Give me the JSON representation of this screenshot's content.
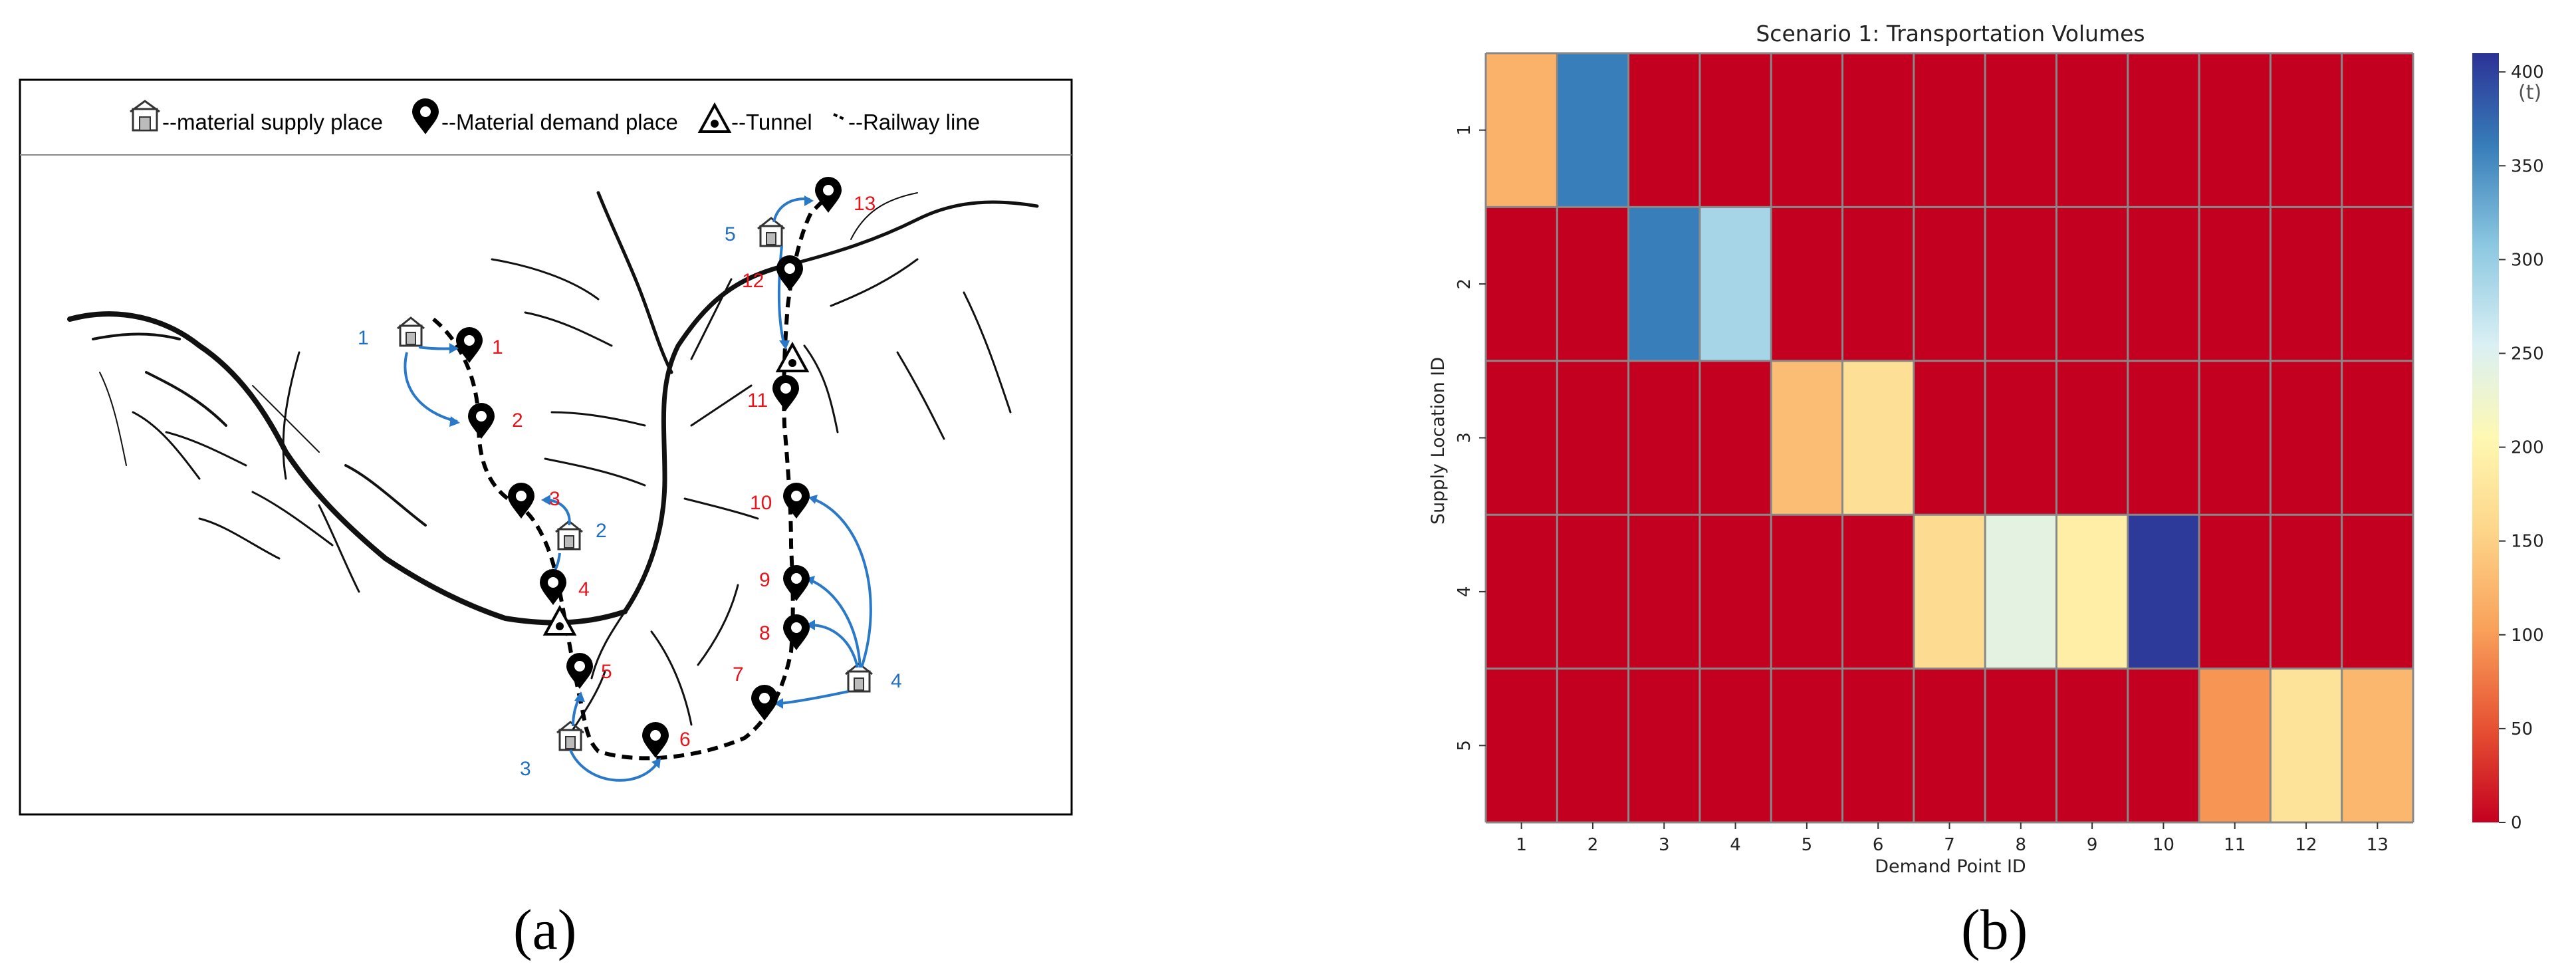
{
  "panel_a": {
    "label": "(a)",
    "legend": {
      "supply": "--material supply place",
      "demand": "--Material demand place",
      "tunnel": "--Tunnel",
      "railway": "--Railway line"
    },
    "demand_points": [
      {
        "id": "1"
      },
      {
        "id": "2"
      },
      {
        "id": "3"
      },
      {
        "id": "4"
      },
      {
        "id": "5"
      },
      {
        "id": "6"
      },
      {
        "id": "7"
      },
      {
        "id": "8"
      },
      {
        "id": "9"
      },
      {
        "id": "10"
      },
      {
        "id": "11"
      },
      {
        "id": "12"
      },
      {
        "id": "13"
      }
    ],
    "supply_points": [
      {
        "id": "1"
      },
      {
        "id": "2"
      },
      {
        "id": "3"
      },
      {
        "id": "4"
      },
      {
        "id": "5"
      }
    ],
    "colors": {
      "demand_label": "#e8141b",
      "supply_label": "#1f6fc0",
      "arrow": "#2a78c8"
    }
  },
  "panel_b": {
    "label": "(b)"
  },
  "chart_data": {
    "type": "heatmap",
    "title": "Scenario 1: Transportation Volumes",
    "xlabel": "Demand Point ID",
    "ylabel": "Supply Location ID",
    "x": [
      "1",
      "2",
      "3",
      "4",
      "5",
      "6",
      "7",
      "8",
      "9",
      "10",
      "11",
      "12",
      "13"
    ],
    "y": [
      "1",
      "2",
      "3",
      "4",
      "5"
    ],
    "values": [
      [
        120,
        360,
        0,
        0,
        0,
        0,
        0,
        0,
        0,
        0,
        0,
        0,
        0
      ],
      [
        0,
        0,
        360,
        290,
        0,
        0,
        0,
        0,
        0,
        0,
        0,
        0,
        0
      ],
      [
        0,
        0,
        0,
        0,
        130,
        170,
        0,
        0,
        0,
        0,
        0,
        0,
        0
      ],
      [
        0,
        0,
        0,
        0,
        0,
        0,
        165,
        240,
        190,
        405,
        0,
        0,
        0
      ],
      [
        0,
        0,
        0,
        0,
        0,
        0,
        0,
        0,
        0,
        0,
        95,
        175,
        125
      ]
    ],
    "colorbar": {
      "min": 0,
      "max": 410,
      "ticks": [
        0,
        50,
        100,
        150,
        200,
        250,
        300,
        350,
        400
      ],
      "unit": "(t)",
      "colormap": "RdYlBu"
    },
    "grid": true
  }
}
